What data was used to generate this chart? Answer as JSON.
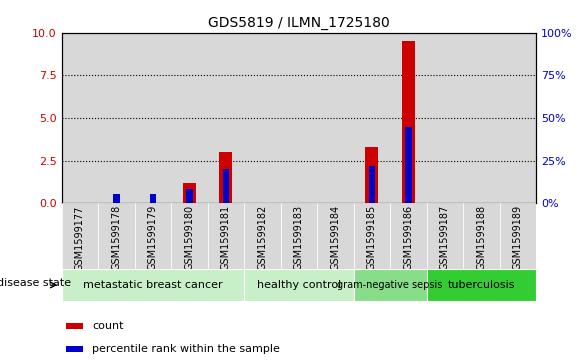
{
  "title": "GDS5819 / ILMN_1725180",
  "samples": [
    "GSM1599177",
    "GSM1599178",
    "GSM1599179",
    "GSM1599180",
    "GSM1599181",
    "GSM1599182",
    "GSM1599183",
    "GSM1599184",
    "GSM1599185",
    "GSM1599186",
    "GSM1599187",
    "GSM1599188",
    "GSM1599189"
  ],
  "count_values": [
    0.0,
    0.0,
    0.0,
    1.2,
    3.0,
    0.0,
    0.0,
    0.0,
    3.3,
    9.5,
    0.0,
    0.0,
    0.0
  ],
  "percentile_values": [
    0.0,
    5.5,
    5.5,
    8.5,
    20.0,
    0.0,
    0.0,
    0.0,
    22.0,
    45.0,
    0.0,
    0.0,
    0.0
  ],
  "ylim_left": [
    0,
    10
  ],
  "ylim_right": [
    0,
    100
  ],
  "yticks_left": [
    0,
    2.5,
    5.0,
    7.5,
    10
  ],
  "yticks_right": [
    0,
    25,
    50,
    75,
    100
  ],
  "bar_color_red": "#cc0000",
  "bar_color_blue": "#0000cc",
  "red_bar_width": 0.35,
  "blue_bar_width": 0.18,
  "disease_groups": [
    {
      "label": "metastatic breast cancer",
      "start": 0,
      "end": 5
    },
    {
      "label": "healthy control",
      "start": 5,
      "end": 8
    },
    {
      "label": "gram-negative sepsis",
      "start": 8,
      "end": 10
    },
    {
      "label": "tuberculosis",
      "start": 10,
      "end": 13
    }
  ],
  "disease_group_colors": [
    "#c8f0c8",
    "#c8f0c8",
    "#88dd88",
    "#33cc33"
  ],
  "disease_group_fontsizes": [
    8,
    8,
    7,
    8
  ],
  "tick_bg_color": "#d8d8d8",
  "plot_bg_color": "#ffffff",
  "grid_color": "#000000",
  "legend_count_label": "count",
  "legend_percentile_label": "percentile rank within the sample",
  "disease_state_label": "disease state"
}
